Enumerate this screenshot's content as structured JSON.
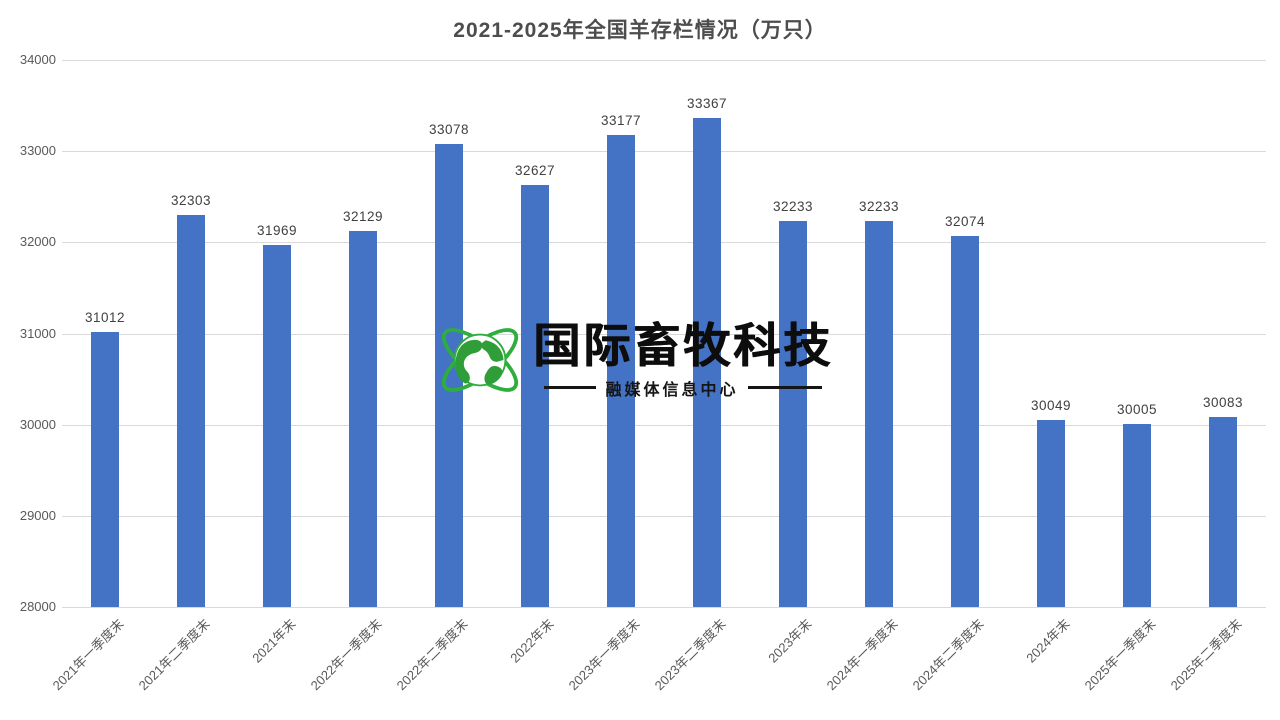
{
  "title": "2021-2025年全国羊存栏情况（万只）",
  "watermark": {
    "brand": "国际畜牧科技",
    "subtitle": "融媒体信息中心",
    "icon": "globe-orbit-icon",
    "green": "#2eae3c",
    "dark_green": "#2f9e38",
    "text_color": "#0d0d0d"
  },
  "colors": {
    "bar": "#4472c4",
    "gridline": "#d9d9d9",
    "axis_text": "#595959",
    "data_label": "#404040",
    "title_text": "#4d4d4d",
    "background": "#ffffff"
  },
  "chart_data": {
    "type": "bar",
    "title": "2021-2025年全国羊存栏情况（万只）",
    "categories": [
      "2021年一季度末",
      "2021年二季度末",
      "2021年末",
      "2022年一季度末",
      "2022年二季度末",
      "2022年末",
      "2023年一季度末",
      "2023年二季度末",
      "2023年末",
      "2024年一季度末",
      "2024年二季度末",
      "2024年末",
      "2025年一季度末",
      "2025年二季度末"
    ],
    "values": [
      31012,
      32303,
      31969,
      32129,
      33078,
      32627,
      33177,
      33367,
      32233,
      32233,
      32074,
      30049,
      30005,
      30083
    ],
    "xlabel": "",
    "ylabel": "",
    "ylim": [
      28000,
      34000
    ],
    "yticks": [
      28000,
      29000,
      30000,
      31000,
      32000,
      33000,
      34000
    ],
    "grid": true,
    "legend": false,
    "data_labels": true,
    "x_label_rotation_deg": 45
  }
}
